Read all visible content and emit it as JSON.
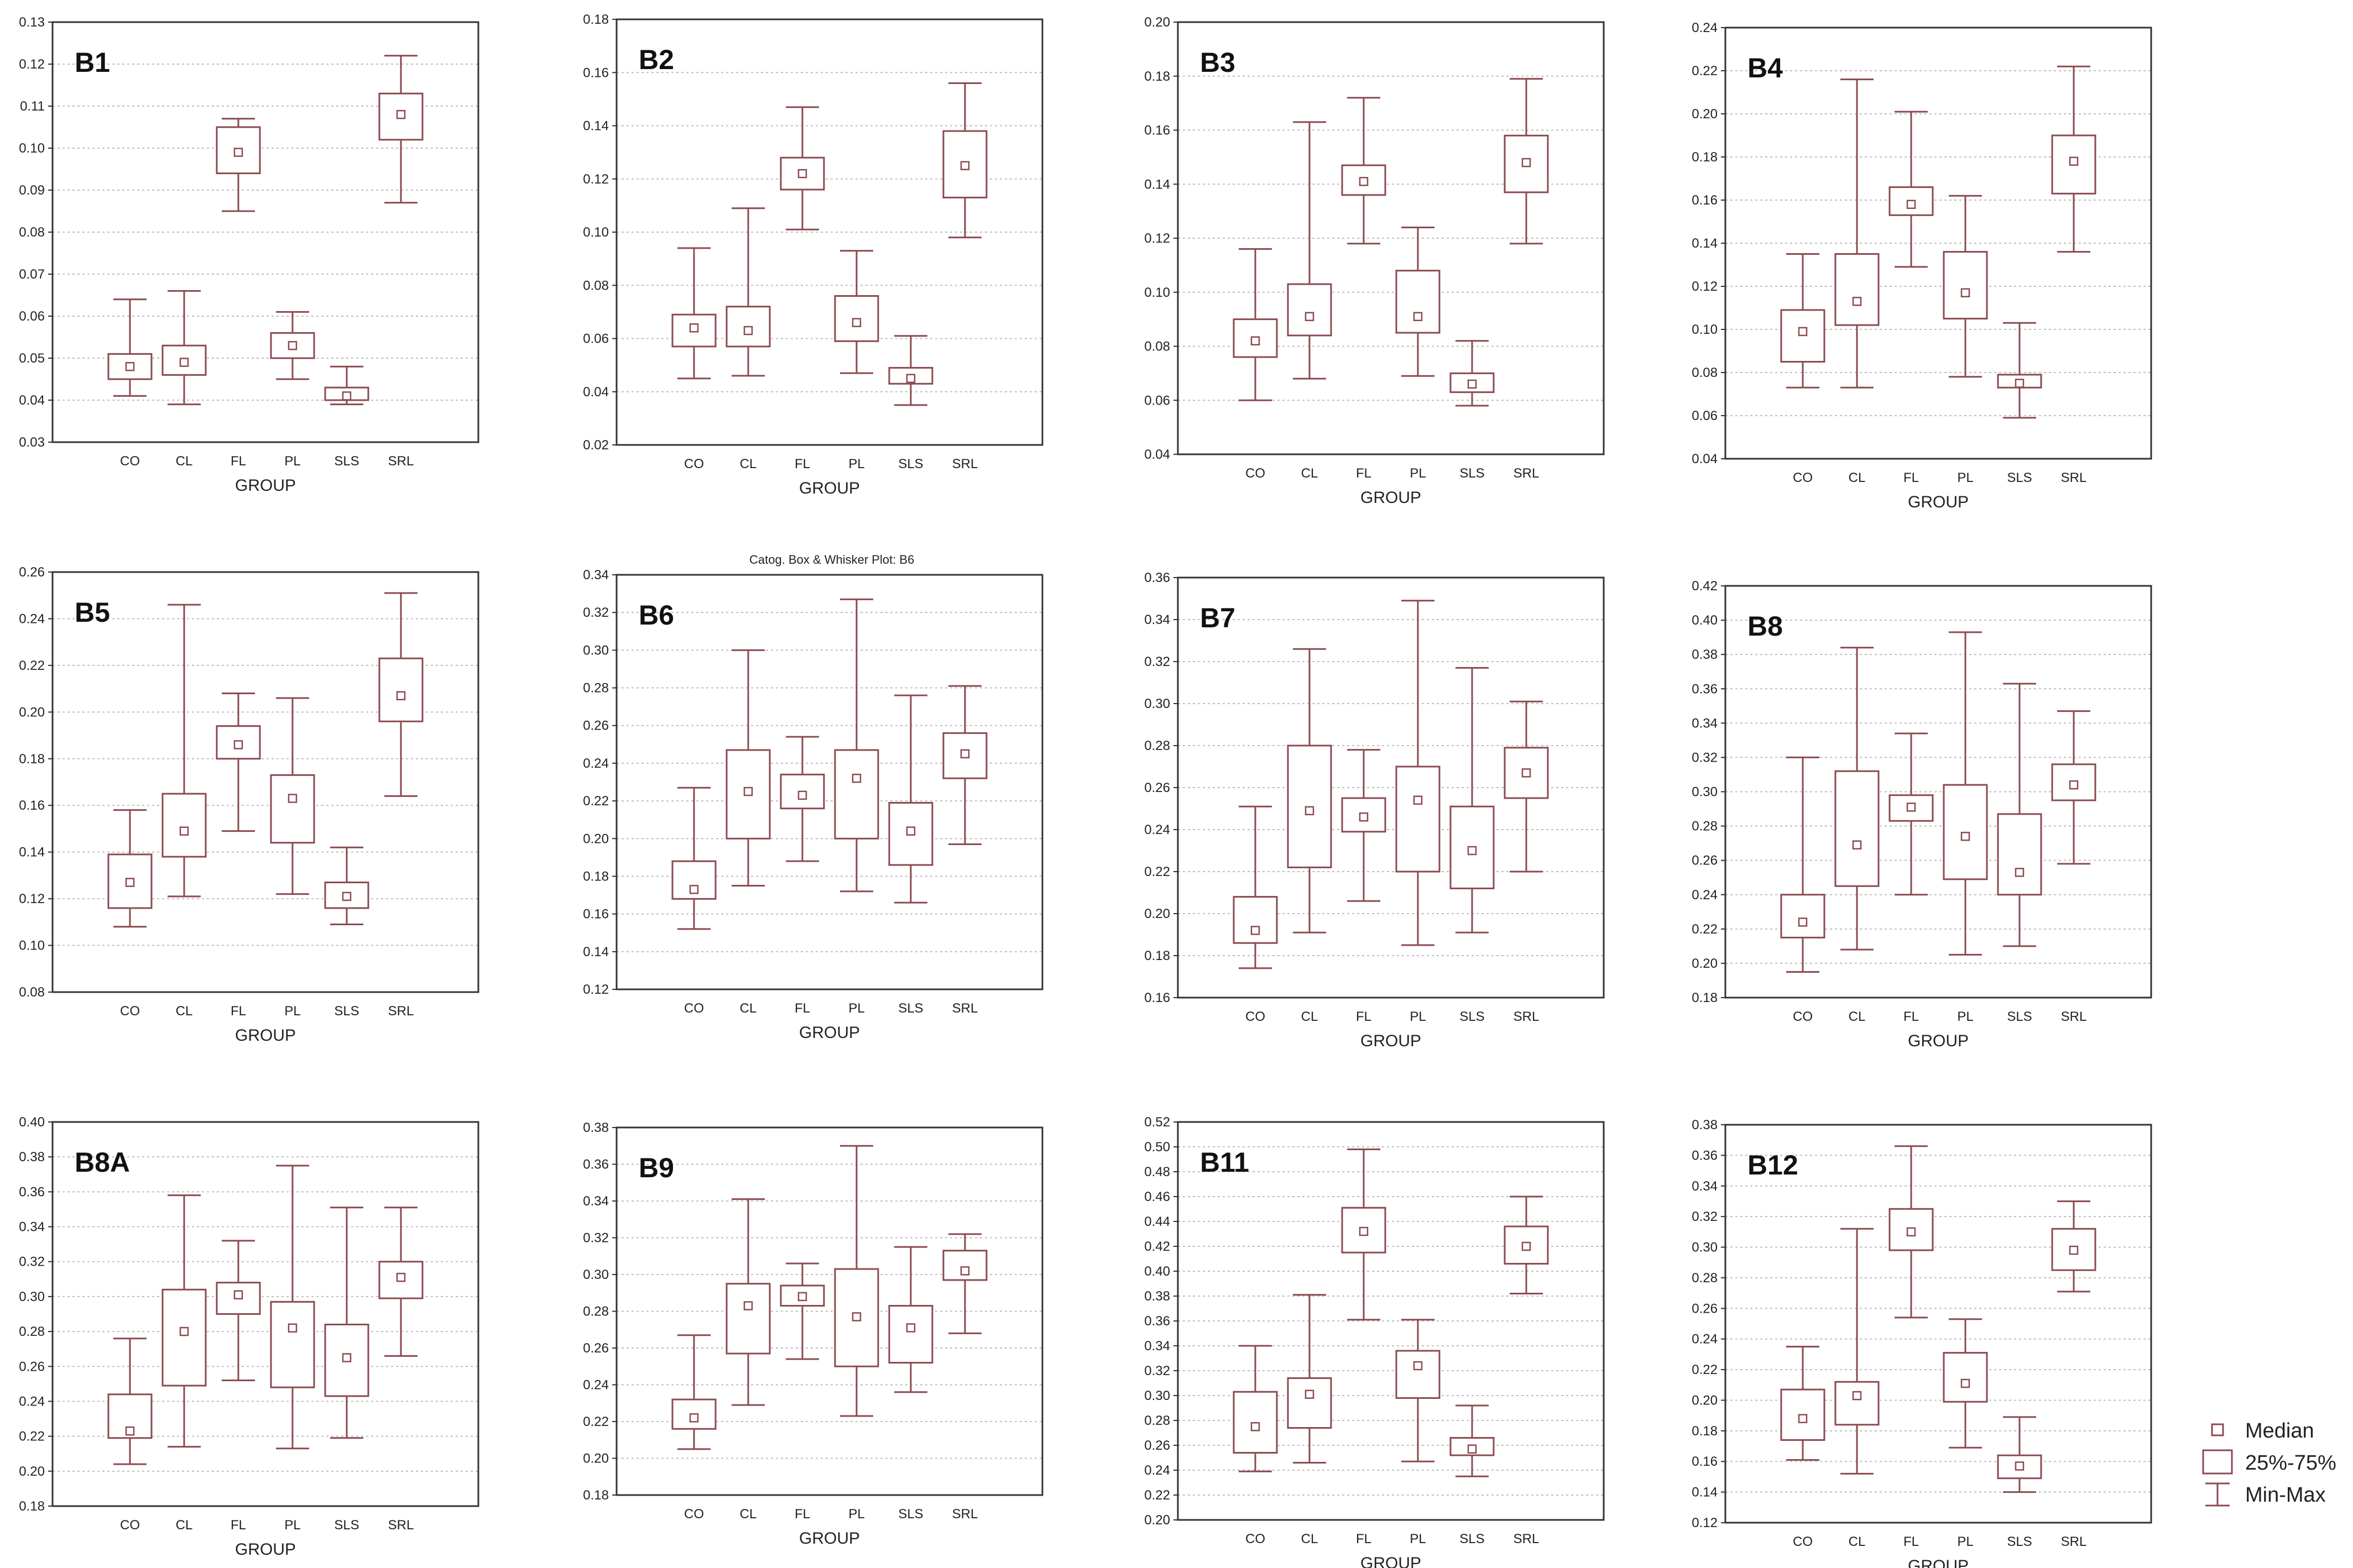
{
  "chart_data": [
    {
      "type": "box",
      "panel": "B1",
      "categories": [
        "CO",
        "CL",
        "FL",
        "PL",
        "SLS",
        "SRL"
      ],
      "xlabel": "GROUP",
      "ylim": [
        0.03,
        0.13
      ],
      "ticks": [
        0.03,
        0.04,
        0.05,
        0.06,
        0.07,
        0.08,
        0.09,
        0.1,
        0.11,
        0.12,
        0.13
      ],
      "tick_labels": [
        "0.03",
        "0.04",
        "0.05",
        "0.06",
        "0.07",
        "0.08",
        "0.09",
        "0.10",
        "0.11",
        "0.12",
        "0.13"
      ],
      "boxes": [
        {
          "min": 0.041,
          "q1": 0.045,
          "median": 0.048,
          "q3": 0.051,
          "max": 0.064
        },
        {
          "min": 0.039,
          "q1": 0.046,
          "median": 0.049,
          "q3": 0.053,
          "max": 0.066
        },
        {
          "min": 0.085,
          "q1": 0.094,
          "median": 0.099,
          "q3": 0.105,
          "max": 0.107
        },
        {
          "min": 0.045,
          "q1": 0.05,
          "median": 0.053,
          "q3": 0.056,
          "max": 0.061
        },
        {
          "min": 0.039,
          "q1": 0.04,
          "median": 0.041,
          "q3": 0.043,
          "max": 0.048
        },
        {
          "min": 0.087,
          "q1": 0.102,
          "median": 0.108,
          "q3": 0.113,
          "max": 0.122
        }
      ]
    },
    {
      "type": "box",
      "panel": "B2",
      "categories": [
        "CO",
        "CL",
        "FL",
        "PL",
        "SLS",
        "SRL"
      ],
      "xlabel": "GROUP",
      "ylim": [
        0.02,
        0.18
      ],
      "ticks": [
        0.02,
        0.04,
        0.06,
        0.08,
        0.1,
        0.12,
        0.14,
        0.16,
        0.18
      ],
      "tick_labels": [
        "0.02",
        "0.04",
        "0.06",
        "0.08",
        "0.10",
        "0.12",
        "0.14",
        "0.16",
        "0.18"
      ],
      "boxes": [
        {
          "min": 0.045,
          "q1": 0.057,
          "median": 0.064,
          "q3": 0.069,
          "max": 0.094
        },
        {
          "min": 0.046,
          "q1": 0.057,
          "median": 0.063,
          "q3": 0.072,
          "max": 0.109
        },
        {
          "min": 0.101,
          "q1": 0.116,
          "median": 0.122,
          "q3": 0.128,
          "max": 0.147
        },
        {
          "min": 0.047,
          "q1": 0.059,
          "median": 0.066,
          "q3": 0.076,
          "max": 0.093
        },
        {
          "min": 0.035,
          "q1": 0.043,
          "median": 0.045,
          "q3": 0.049,
          "max": 0.061
        },
        {
          "min": 0.098,
          "q1": 0.113,
          "median": 0.125,
          "q3": 0.138,
          "max": 0.156
        }
      ]
    },
    {
      "type": "box",
      "panel": "B3",
      "categories": [
        "CO",
        "CL",
        "FL",
        "PL",
        "SLS",
        "SRL"
      ],
      "xlabel": "GROUP",
      "ylim": [
        0.04,
        0.2
      ],
      "ticks": [
        0.04,
        0.06,
        0.08,
        0.1,
        0.12,
        0.14,
        0.16,
        0.18,
        0.2
      ],
      "tick_labels": [
        "0.04",
        "0.06",
        "0.08",
        "0.10",
        "0.12",
        "0.14",
        "0.16",
        "0.18",
        "0.20"
      ],
      "boxes": [
        {
          "min": 0.06,
          "q1": 0.076,
          "median": 0.082,
          "q3": 0.09,
          "max": 0.116
        },
        {
          "min": 0.068,
          "q1": 0.084,
          "median": 0.091,
          "q3": 0.103,
          "max": 0.163
        },
        {
          "min": 0.118,
          "q1": 0.136,
          "median": 0.141,
          "q3": 0.147,
          "max": 0.172
        },
        {
          "min": 0.069,
          "q1": 0.085,
          "median": 0.091,
          "q3": 0.108,
          "max": 0.124
        },
        {
          "min": 0.058,
          "q1": 0.063,
          "median": 0.066,
          "q3": 0.07,
          "max": 0.082
        },
        {
          "min": 0.118,
          "q1": 0.137,
          "median": 0.148,
          "q3": 0.158,
          "max": 0.179
        }
      ]
    },
    {
      "type": "box",
      "panel": "B4",
      "categories": [
        "CO",
        "CL",
        "FL",
        "PL",
        "SLS",
        "SRL"
      ],
      "xlabel": "GROUP",
      "ylim": [
        0.04,
        0.24
      ],
      "ticks": [
        0.04,
        0.06,
        0.08,
        0.1,
        0.12,
        0.14,
        0.16,
        0.18,
        0.2,
        0.22,
        0.24
      ],
      "tick_labels": [
        "0.04",
        "0.06",
        "0.08",
        "0.10",
        "0.12",
        "0.14",
        "0.16",
        "0.18",
        "0.20",
        "0.22",
        "0.24"
      ],
      "boxes": [
        {
          "min": 0.073,
          "q1": 0.085,
          "median": 0.099,
          "q3": 0.109,
          "max": 0.135
        },
        {
          "min": 0.073,
          "q1": 0.102,
          "median": 0.113,
          "q3": 0.135,
          "max": 0.216
        },
        {
          "min": 0.129,
          "q1": 0.153,
          "median": 0.158,
          "q3": 0.166,
          "max": 0.201
        },
        {
          "min": 0.078,
          "q1": 0.105,
          "median": 0.117,
          "q3": 0.136,
          "max": 0.162
        },
        {
          "min": 0.059,
          "q1": 0.073,
          "median": 0.075,
          "q3": 0.079,
          "max": 0.103
        },
        {
          "min": 0.136,
          "q1": 0.163,
          "median": 0.178,
          "q3": 0.19,
          "max": 0.222
        }
      ]
    },
    {
      "type": "box",
      "panel": "B5",
      "categories": [
        "CO",
        "CL",
        "FL",
        "PL",
        "SLS",
        "SRL"
      ],
      "xlabel": "GROUP",
      "ylim": [
        0.08,
        0.26
      ],
      "ticks": [
        0.08,
        0.1,
        0.12,
        0.14,
        0.16,
        0.18,
        0.2,
        0.22,
        0.24,
        0.26
      ],
      "tick_labels": [
        "0.08",
        "0.10",
        "0.12",
        "0.14",
        "0.16",
        "0.18",
        "0.20",
        "0.22",
        "0.24",
        "0.26"
      ],
      "boxes": [
        {
          "min": 0.108,
          "q1": 0.116,
          "median": 0.127,
          "q3": 0.139,
          "max": 0.158
        },
        {
          "min": 0.121,
          "q1": 0.138,
          "median": 0.149,
          "q3": 0.165,
          "max": 0.246
        },
        {
          "min": 0.149,
          "q1": 0.18,
          "median": 0.186,
          "q3": 0.194,
          "max": 0.208
        },
        {
          "min": 0.122,
          "q1": 0.144,
          "median": 0.163,
          "q3": 0.173,
          "max": 0.206
        },
        {
          "min": 0.109,
          "q1": 0.116,
          "median": 0.121,
          "q3": 0.127,
          "max": 0.142
        },
        {
          "min": 0.164,
          "q1": 0.196,
          "median": 0.207,
          "q3": 0.223,
          "max": 0.251
        }
      ]
    },
    {
      "type": "box",
      "panel": "B6",
      "title": "Catog. Box & Whisker Plot:     B6",
      "categories": [
        "CO",
        "CL",
        "FL",
        "PL",
        "SLS",
        "SRL"
      ],
      "xlabel": "GROUP",
      "ylim": [
        0.12,
        0.34
      ],
      "ticks": [
        0.12,
        0.14,
        0.16,
        0.18,
        0.2,
        0.22,
        0.24,
        0.26,
        0.28,
        0.3,
        0.32,
        0.34
      ],
      "tick_labels": [
        "0.12",
        "0.14",
        "0.16",
        "0.18",
        "0.20",
        "0.22",
        "0.24",
        "0.26",
        "0.28",
        "0.30",
        "0.32",
        "0.34"
      ],
      "boxes": [
        {
          "min": 0.152,
          "q1": 0.168,
          "median": 0.173,
          "q3": 0.188,
          "max": 0.227
        },
        {
          "min": 0.175,
          "q1": 0.2,
          "median": 0.225,
          "q3": 0.247,
          "max": 0.3
        },
        {
          "min": 0.188,
          "q1": 0.216,
          "median": 0.223,
          "q3": 0.234,
          "max": 0.254
        },
        {
          "min": 0.172,
          "q1": 0.2,
          "median": 0.232,
          "q3": 0.247,
          "max": 0.327
        },
        {
          "min": 0.166,
          "q1": 0.186,
          "median": 0.204,
          "q3": 0.219,
          "max": 0.276
        },
        {
          "min": 0.197,
          "q1": 0.232,
          "median": 0.245,
          "q3": 0.256,
          "max": 0.281
        }
      ]
    },
    {
      "type": "box",
      "panel": "B7",
      "categories": [
        "CO",
        "CL",
        "FL",
        "PL",
        "SLS",
        "SRL"
      ],
      "xlabel": "GROUP",
      "ylim": [
        0.16,
        0.36
      ],
      "ticks": [
        0.16,
        0.18,
        0.2,
        0.22,
        0.24,
        0.26,
        0.28,
        0.3,
        0.32,
        0.34,
        0.36
      ],
      "tick_labels": [
        "0.16",
        "0.18",
        "0.20",
        "0.22",
        "0.24",
        "0.26",
        "0.28",
        "0.30",
        "0.32",
        "0.34",
        "0.36"
      ],
      "boxes": [
        {
          "min": 0.174,
          "q1": 0.186,
          "median": 0.192,
          "q3": 0.208,
          "max": 0.251
        },
        {
          "min": 0.191,
          "q1": 0.222,
          "median": 0.249,
          "q3": 0.28,
          "max": 0.326
        },
        {
          "min": 0.206,
          "q1": 0.239,
          "median": 0.246,
          "q3": 0.255,
          "max": 0.278
        },
        {
          "min": 0.185,
          "q1": 0.22,
          "median": 0.254,
          "q3": 0.27,
          "max": 0.349
        },
        {
          "min": 0.191,
          "q1": 0.212,
          "median": 0.23,
          "q3": 0.251,
          "max": 0.317
        },
        {
          "min": 0.22,
          "q1": 0.255,
          "median": 0.267,
          "q3": 0.279,
          "max": 0.301
        }
      ]
    },
    {
      "type": "box",
      "panel": "B8",
      "categories": [
        "CO",
        "CL",
        "FL",
        "PL",
        "SLS",
        "SRL"
      ],
      "xlabel": "GROUP",
      "ylim": [
        0.18,
        0.42
      ],
      "ticks": [
        0.18,
        0.2,
        0.22,
        0.24,
        0.26,
        0.28,
        0.3,
        0.32,
        0.34,
        0.36,
        0.38,
        0.4,
        0.42
      ],
      "tick_labels": [
        "0.18",
        "0.20",
        "0.22",
        "0.24",
        "0.26",
        "0.28",
        "0.30",
        "0.32",
        "0.34",
        "0.36",
        "0.38",
        "0.40",
        "0.42"
      ],
      "boxes": [
        {
          "min": 0.195,
          "q1": 0.215,
          "median": 0.224,
          "q3": 0.24,
          "max": 0.32
        },
        {
          "min": 0.208,
          "q1": 0.245,
          "median": 0.269,
          "q3": 0.312,
          "max": 0.384
        },
        {
          "min": 0.24,
          "q1": 0.283,
          "median": 0.291,
          "q3": 0.298,
          "max": 0.334
        },
        {
          "min": 0.205,
          "q1": 0.249,
          "median": 0.274,
          "q3": 0.304,
          "max": 0.393
        },
        {
          "min": 0.21,
          "q1": 0.24,
          "median": 0.253,
          "q3": 0.287,
          "max": 0.363
        },
        {
          "min": 0.258,
          "q1": 0.295,
          "median": 0.304,
          "q3": 0.316,
          "max": 0.347
        }
      ]
    },
    {
      "type": "box",
      "panel": "B8A",
      "categories": [
        "CO",
        "CL",
        "FL",
        "PL",
        "SLS",
        "SRL"
      ],
      "xlabel": "GROUP",
      "ylim": [
        0.18,
        0.4
      ],
      "ticks": [
        0.18,
        0.2,
        0.22,
        0.24,
        0.26,
        0.28,
        0.3,
        0.32,
        0.34,
        0.36,
        0.38,
        0.4
      ],
      "tick_labels": [
        "0.18",
        "0.20",
        "0.22",
        "0.24",
        "0.26",
        "0.28",
        "0.30",
        "0.32",
        "0.34",
        "0.36",
        "0.38",
        "0.40"
      ],
      "boxes": [
        {
          "min": 0.204,
          "q1": 0.219,
          "median": 0.223,
          "q3": 0.244,
          "max": 0.276
        },
        {
          "min": 0.214,
          "q1": 0.249,
          "median": 0.28,
          "q3": 0.304,
          "max": 0.358
        },
        {
          "min": 0.252,
          "q1": 0.29,
          "median": 0.301,
          "q3": 0.308,
          "max": 0.332
        },
        {
          "min": 0.213,
          "q1": 0.248,
          "median": 0.282,
          "q3": 0.297,
          "max": 0.375
        },
        {
          "min": 0.219,
          "q1": 0.243,
          "median": 0.265,
          "q3": 0.284,
          "max": 0.351
        },
        {
          "min": 0.266,
          "q1": 0.299,
          "median": 0.311,
          "q3": 0.32,
          "max": 0.351
        }
      ]
    },
    {
      "type": "box",
      "panel": "B9",
      "categories": [
        "CO",
        "CL",
        "FL",
        "PL",
        "SLS",
        "SRL"
      ],
      "xlabel": "GROUP",
      "ylim": [
        0.18,
        0.38
      ],
      "ticks": [
        0.18,
        0.2,
        0.22,
        0.24,
        0.26,
        0.28,
        0.3,
        0.32,
        0.34,
        0.36,
        0.38
      ],
      "tick_labels": [
        "0.18",
        "0.20",
        "0.22",
        "0.24",
        "0.26",
        "0.28",
        "0.30",
        "0.32",
        "0.34",
        "0.36",
        "0.38"
      ],
      "boxes": [
        {
          "min": 0.205,
          "q1": 0.216,
          "median": 0.222,
          "q3": 0.232,
          "max": 0.267
        },
        {
          "min": 0.229,
          "q1": 0.257,
          "median": 0.283,
          "q3": 0.295,
          "max": 0.341
        },
        {
          "min": 0.254,
          "q1": 0.283,
          "median": 0.288,
          "q3": 0.294,
          "max": 0.306
        },
        {
          "min": 0.223,
          "q1": 0.25,
          "median": 0.277,
          "q3": 0.303,
          "max": 0.37
        },
        {
          "min": 0.236,
          "q1": 0.252,
          "median": 0.271,
          "q3": 0.283,
          "max": 0.315
        },
        {
          "min": 0.268,
          "q1": 0.297,
          "median": 0.302,
          "q3": 0.313,
          "max": 0.322
        }
      ]
    },
    {
      "type": "box",
      "panel": "B11",
      "categories": [
        "CO",
        "CL",
        "FL",
        "PL",
        "SLS",
        "SRL"
      ],
      "xlabel": "GROUP",
      "ylim": [
        0.2,
        0.52
      ],
      "ticks": [
        0.2,
        0.22,
        0.24,
        0.26,
        0.28,
        0.3,
        0.32,
        0.34,
        0.36,
        0.38,
        0.4,
        0.42,
        0.44,
        0.46,
        0.48,
        0.5,
        0.52
      ],
      "tick_labels": [
        "0.20",
        "0.22",
        "0.24",
        "0.26",
        "0.28",
        "0.30",
        "0.32",
        "0.34",
        "0.36",
        "0.38",
        "0.40",
        "0.42",
        "0.44",
        "0.46",
        "0.48",
        "0.50",
        "0.52"
      ],
      "boxes": [
        {
          "min": 0.239,
          "q1": 0.254,
          "median": 0.275,
          "q3": 0.303,
          "max": 0.34
        },
        {
          "min": 0.246,
          "q1": 0.274,
          "median": 0.301,
          "q3": 0.314,
          "max": 0.381
        },
        {
          "min": 0.361,
          "q1": 0.415,
          "median": 0.432,
          "q3": 0.451,
          "max": 0.498
        },
        {
          "min": 0.247,
          "q1": 0.298,
          "median": 0.324,
          "q3": 0.336,
          "max": 0.361
        },
        {
          "min": 0.235,
          "q1": 0.252,
          "median": 0.257,
          "q3": 0.266,
          "max": 0.292
        },
        {
          "min": 0.382,
          "q1": 0.406,
          "median": 0.42,
          "q3": 0.436,
          "max": 0.46
        }
      ]
    },
    {
      "type": "box",
      "panel": "B12",
      "categories": [
        "CO",
        "CL",
        "FL",
        "PL",
        "SLS",
        "SRL"
      ],
      "xlabel": "GROUP",
      "ylim": [
        0.12,
        0.38
      ],
      "ticks": [
        0.12,
        0.14,
        0.16,
        0.18,
        0.2,
        0.22,
        0.24,
        0.26,
        0.28,
        0.3,
        0.32,
        0.34,
        0.36,
        0.38
      ],
      "tick_labels": [
        "0.12",
        "0.14",
        "0.16",
        "0.18",
        "0.20",
        "0.22",
        "0.24",
        "0.26",
        "0.28",
        "0.30",
        "0.32",
        "0.34",
        "0.36",
        "0.38"
      ],
      "boxes": [
        {
          "min": 0.161,
          "q1": 0.174,
          "median": 0.188,
          "q3": 0.207,
          "max": 0.235
        },
        {
          "min": 0.152,
          "q1": 0.184,
          "median": 0.203,
          "q3": 0.212,
          "max": 0.312
        },
        {
          "min": 0.254,
          "q1": 0.298,
          "median": 0.31,
          "q3": 0.325,
          "max": 0.366
        },
        {
          "min": 0.169,
          "q1": 0.199,
          "median": 0.211,
          "q3": 0.231,
          "max": 0.253
        },
        {
          "min": 0.14,
          "q1": 0.149,
          "median": 0.157,
          "q3": 0.164,
          "max": 0.189
        },
        {
          "min": 0.271,
          "q1": 0.285,
          "median": 0.298,
          "q3": 0.312,
          "max": 0.33
        }
      ]
    }
  ],
  "legend": {
    "median": "Median",
    "box": "25%-75%",
    "whisker": "Min-Max"
  },
  "colors": {
    "box": "#8b4a4f",
    "median": "#8b4a4f",
    "axis": "#333333",
    "grid": "#bdbdbd",
    "text": "#222222"
  }
}
